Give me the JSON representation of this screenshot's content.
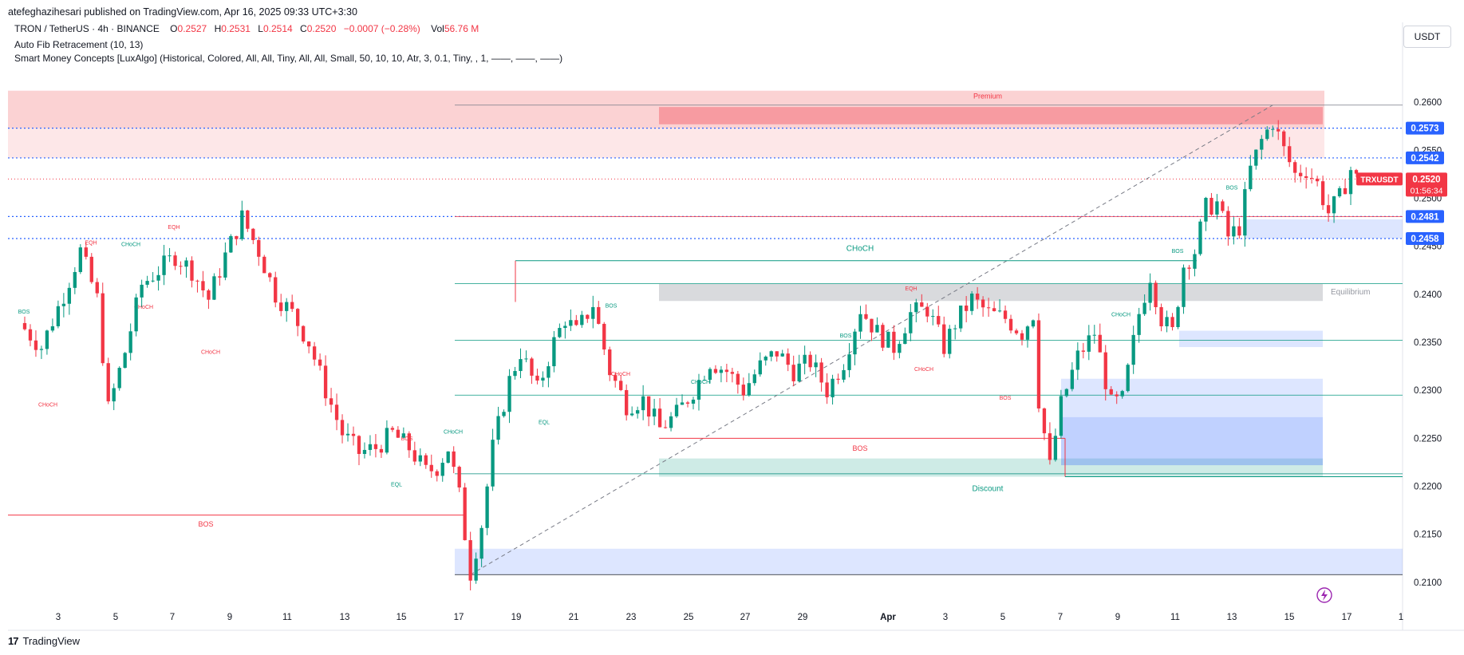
{
  "header": {
    "publisher": "atefeghazihesari published on TradingView.com, Apr 16, 2025 09:33 UTC+3:30"
  },
  "symbol": {
    "title": "TRON / TetherUS · 4h · BINANCE",
    "o_label": "O",
    "o": "0.2527",
    "h_label": "H",
    "h": "0.2531",
    "l_label": "L",
    "l": "0.2514",
    "c_label": "C",
    "c": "0.2520",
    "change": "−0.0007 (−0.28%)",
    "vol_label": "Vol",
    "vol": "56.76 M"
  },
  "indicators": [
    "Auto Fib Retracement (10, 13)",
    "Smart Money Concepts [LuxAlgo] (Historical, Colored, All, All, Tiny, All, All, Small, 50, 10, 10, Atr, 3, 0.1, Tiny, , 1, ——, ——, ——)"
  ],
  "currency": "USDT",
  "footer": {
    "brand": "TradingView"
  },
  "colors": {
    "up": "#089981",
    "down": "#f23645",
    "blue": "#2962ff",
    "premium": "#f23645",
    "discount": "#089981",
    "equilibrium": "#787b86"
  },
  "chart_data": {
    "type": "candlestick",
    "symbol": "TRXUSDT",
    "timeframe": "4h",
    "ylim": [
      0.2075,
      0.2635
    ],
    "yticks": [
      "0.2600",
      "0.2550",
      "0.2500",
      "0.2450",
      "0.2400",
      "0.2350",
      "0.2300",
      "0.2250",
      "0.2200",
      "0.2150",
      "0.2100"
    ],
    "xticks": [
      "3",
      "5",
      "7",
      "9",
      "11",
      "13",
      "15",
      "17",
      "19",
      "21",
      "23",
      "25",
      "27",
      "29",
      "Apr",
      "3",
      "5",
      "7",
      "9",
      "11",
      "13",
      "15",
      "17",
      "1"
    ],
    "price_labels": [
      {
        "value": "0.2573",
        "kind": "blue"
      },
      {
        "value": "0.2542",
        "kind": "blue"
      },
      {
        "value": "0.2520",
        "kind": "red"
      },
      {
        "value": "0.2481",
        "kind": "blue"
      },
      {
        "value": "0.2458",
        "kind": "blue"
      }
    ],
    "last_price_tag": {
      "symbol": "TRXUSDT",
      "price": "0.2520",
      "countdown": "01:56:34"
    },
    "zones": {
      "premium": "Premium",
      "equilibrium": "Equilibrium",
      "discount": "Discount"
    },
    "structure_labels": {
      "bos": "BOS",
      "choch": "CHoCH",
      "eqh": "EQH",
      "eql": "EQL"
    },
    "close_path": [
      [
        0,
        0.237
      ],
      [
        4,
        0.2345
      ],
      [
        8,
        0.24
      ],
      [
        11,
        0.2445
      ],
      [
        14,
        0.2395
      ],
      [
        16,
        0.228
      ],
      [
        19,
        0.234
      ],
      [
        22,
        0.241
      ],
      [
        25,
        0.2425
      ],
      [
        28,
        0.244
      ],
      [
        31,
        0.2425
      ],
      [
        34,
        0.2395
      ],
      [
        37,
        0.244
      ],
      [
        40,
        0.248
      ],
      [
        43,
        0.2445
      ],
      [
        46,
        0.24
      ],
      [
        49,
        0.238
      ],
      [
        52,
        0.235
      ],
      [
        55,
        0.23
      ],
      [
        58,
        0.2255
      ],
      [
        61,
        0.2235
      ],
      [
        64,
        0.224
      ],
      [
        67,
        0.2255
      ],
      [
        70,
        0.224
      ],
      [
        73,
        0.2215
      ],
      [
        75,
        0.222
      ],
      [
        77,
        0.224
      ],
      [
        79,
        0.219
      ],
      [
        81,
        0.211
      ],
      [
        83,
        0.216
      ],
      [
        85,
        0.224
      ],
      [
        88,
        0.231
      ],
      [
        90,
        0.234
      ],
      [
        93,
        0.23
      ],
      [
        96,
        0.235
      ],
      [
        98,
        0.2375
      ],
      [
        100,
        0.236
      ],
      [
        103,
        0.239
      ],
      [
        106,
        0.232
      ],
      [
        109,
        0.2285
      ],
      [
        112,
        0.229
      ],
      [
        115,
        0.226
      ],
      [
        118,
        0.2275
      ],
      [
        121,
        0.23
      ],
      [
        124,
        0.233
      ],
      [
        127,
        0.232
      ],
      [
        130,
        0.23
      ],
      [
        133,
        0.2325
      ],
      [
        136,
        0.234
      ],
      [
        139,
        0.232
      ],
      [
        142,
        0.233
      ],
      [
        145,
        0.23
      ],
      [
        148,
        0.233
      ],
      [
        151,
        0.2385
      ],
      [
        154,
        0.236
      ],
      [
        157,
        0.2345
      ],
      [
        160,
        0.238
      ],
      [
        163,
        0.2385
      ],
      [
        166,
        0.2345
      ],
      [
        168,
        0.237
      ],
      [
        171,
        0.2395
      ],
      [
        174,
        0.238
      ],
      [
        177,
        0.2375
      ],
      [
        180,
        0.236
      ],
      [
        182,
        0.238
      ],
      [
        183,
        0.229
      ],
      [
        185,
        0.222
      ],
      [
        187,
        0.2285
      ],
      [
        190,
        0.2335
      ],
      [
        193,
        0.236
      ],
      [
        196,
        0.2285
      ],
      [
        198,
        0.229
      ],
      [
        201,
        0.238
      ],
      [
        203,
        0.242
      ],
      [
        205,
        0.2375
      ],
      [
        207,
        0.236
      ],
      [
        209,
        0.243
      ],
      [
        211,
        0.2445
      ],
      [
        213,
        0.249
      ],
      [
        215,
        0.2495
      ],
      [
        217,
        0.246
      ],
      [
        219,
        0.247
      ],
      [
        221,
        0.253
      ],
      [
        223,
        0.256
      ],
      [
        225,
        0.258
      ],
      [
        227,
        0.255
      ],
      [
        229,
        0.2525
      ],
      [
        231,
        0.253
      ],
      [
        233,
        0.2515
      ],
      [
        235,
        0.2485
      ],
      [
        237,
        0.25
      ],
      [
        239,
        0.253
      ],
      [
        240,
        0.252
      ]
    ]
  }
}
